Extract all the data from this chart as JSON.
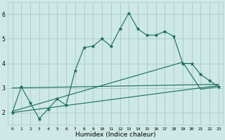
{
  "bg_color": "#cde8e5",
  "grid_color": "#aacfcc",
  "line_color": "#1a6b5e",
  "marker_color": "#1a6b5e",
  "xlabel": "Humidex (Indice chaleur)",
  "ylim": [
    1.5,
    6.5
  ],
  "xlim": [
    -0.5,
    23.5
  ],
  "yticks": [
    2,
    3,
    4,
    5,
    6
  ],
  "xticks": [
    0,
    1,
    2,
    3,
    4,
    5,
    6,
    7,
    8,
    9,
    10,
    11,
    12,
    13,
    14,
    15,
    16,
    17,
    18,
    19,
    20,
    21,
    22,
    23
  ],
  "series1_x": [
    0,
    1,
    2,
    3,
    4,
    5,
    6,
    7,
    8,
    9,
    10,
    11,
    12,
    13,
    14,
    15,
    16,
    17,
    18,
    19,
    20,
    21,
    22,
    23
  ],
  "series1_y": [
    2.0,
    3.05,
    2.4,
    1.75,
    2.15,
    2.55,
    2.3,
    3.7,
    4.65,
    4.7,
    5.0,
    4.7,
    5.4,
    6.05,
    5.4,
    5.15,
    5.15,
    5.3,
    5.1,
    4.0,
    4.0,
    3.55,
    3.3,
    3.05
  ],
  "series2_x": [
    0,
    23
  ],
  "series2_y": [
    2.0,
    3.1
  ],
  "series3_x": [
    0,
    23
  ],
  "series3_y": [
    3.0,
    3.15
  ],
  "series4_x": [
    0,
    19,
    21,
    23
  ],
  "series4_y": [
    2.05,
    4.05,
    2.95,
    3.05
  ]
}
